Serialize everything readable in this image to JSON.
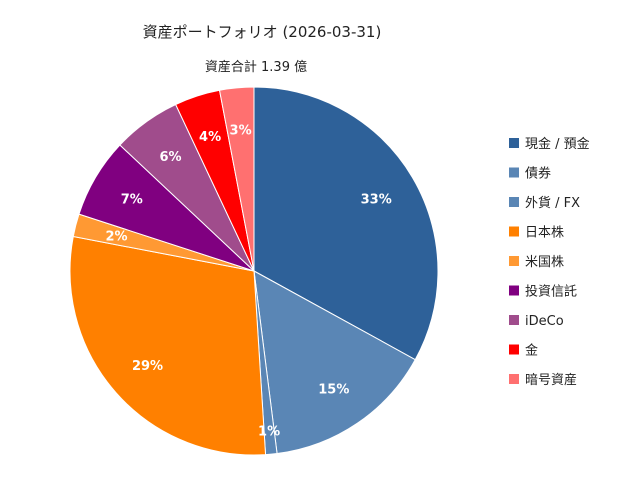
{
  "chart_data": {
    "type": "pie",
    "title": "資産ポートフォリオ (2026-03-31)",
    "subtitle": "資産合計 1.39 億",
    "start_angle_deg": 0,
    "direction": "clockwise",
    "legend_position": "right",
    "slices": [
      {
        "label": "現金 / 預金",
        "value": 33,
        "display": "33%",
        "color": "#2E6199"
      },
      {
        "label": "債券",
        "value": 15,
        "display": "15%",
        "color": "#5A86B5"
      },
      {
        "label": "外貨 / FX",
        "value": 1,
        "display": "1%",
        "color": "#5A86B5"
      },
      {
        "label": "日本株",
        "value": 29,
        "display": "29%",
        "color": "#FF8000"
      },
      {
        "label": "米国株",
        "value": 2,
        "display": "2%",
        "color": "#FF9933"
      },
      {
        "label": "投資信託",
        "value": 7,
        "display": "7%",
        "color": "#800080"
      },
      {
        "label": "iDeCo",
        "value": 6,
        "display": "6%",
        "color": "#A04C8C"
      },
      {
        "label": "金",
        "value": 4,
        "display": "4%",
        "color": "#FF0000"
      },
      {
        "label": "暗号資産",
        "value": 3,
        "display": "3%",
        "color": "#FF7070"
      }
    ]
  }
}
